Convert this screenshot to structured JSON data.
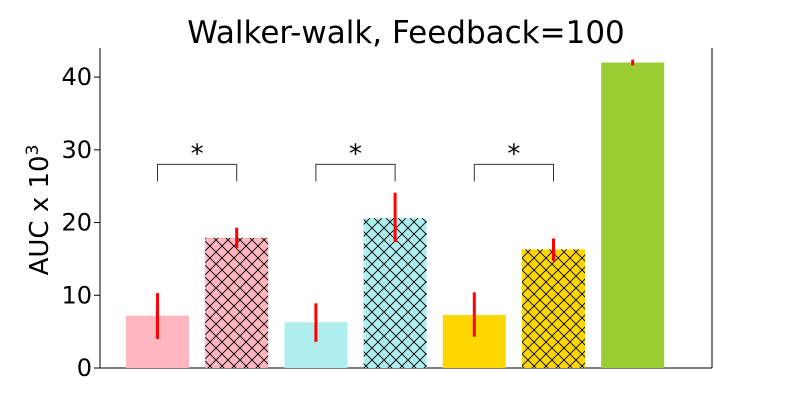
{
  "chart_data": {
    "type": "bar",
    "title": "Walker-walk, Feedback=100",
    "xlabel": "",
    "ylabel": "AUC x 10",
    "ylabel_superscript": "3",
    "ylim": [
      0,
      44
    ],
    "yticks": [
      0,
      10,
      20,
      30,
      40
    ],
    "grid": false,
    "legend": "none",
    "bars": [
      {
        "value": 7.2,
        "err_low": 4.0,
        "err_high": 10.3,
        "color": "#ffb6c1",
        "hatch": false
      },
      {
        "value": 17.9,
        "err_low": 16.5,
        "err_high": 19.3,
        "color": "#ffb6c1",
        "hatch": true
      },
      {
        "value": 6.3,
        "err_low": 3.6,
        "err_high": 8.9,
        "color": "#afeeee",
        "hatch": false
      },
      {
        "value": 20.6,
        "err_low": 17.3,
        "err_high": 24.1,
        "color": "#afeeee",
        "hatch": true
      },
      {
        "value": 7.3,
        "err_low": 4.3,
        "err_high": 10.4,
        "color": "#ffd700",
        "hatch": false
      },
      {
        "value": 16.3,
        "err_low": 14.7,
        "err_high": 17.8,
        "color": "#ffd700",
        "hatch": true
      },
      {
        "value": 42.0,
        "err_low": 41.6,
        "err_high": 42.4,
        "color": "#9acd32",
        "hatch": false
      }
    ],
    "significance": [
      {
        "pair": [
          0,
          1
        ],
        "label": "*"
      },
      {
        "pair": [
          2,
          3
        ],
        "label": "*"
      },
      {
        "pair": [
          4,
          5
        ],
        "label": "*"
      }
    ],
    "bracket_level": 28,
    "error_color": "#ff0000"
  }
}
